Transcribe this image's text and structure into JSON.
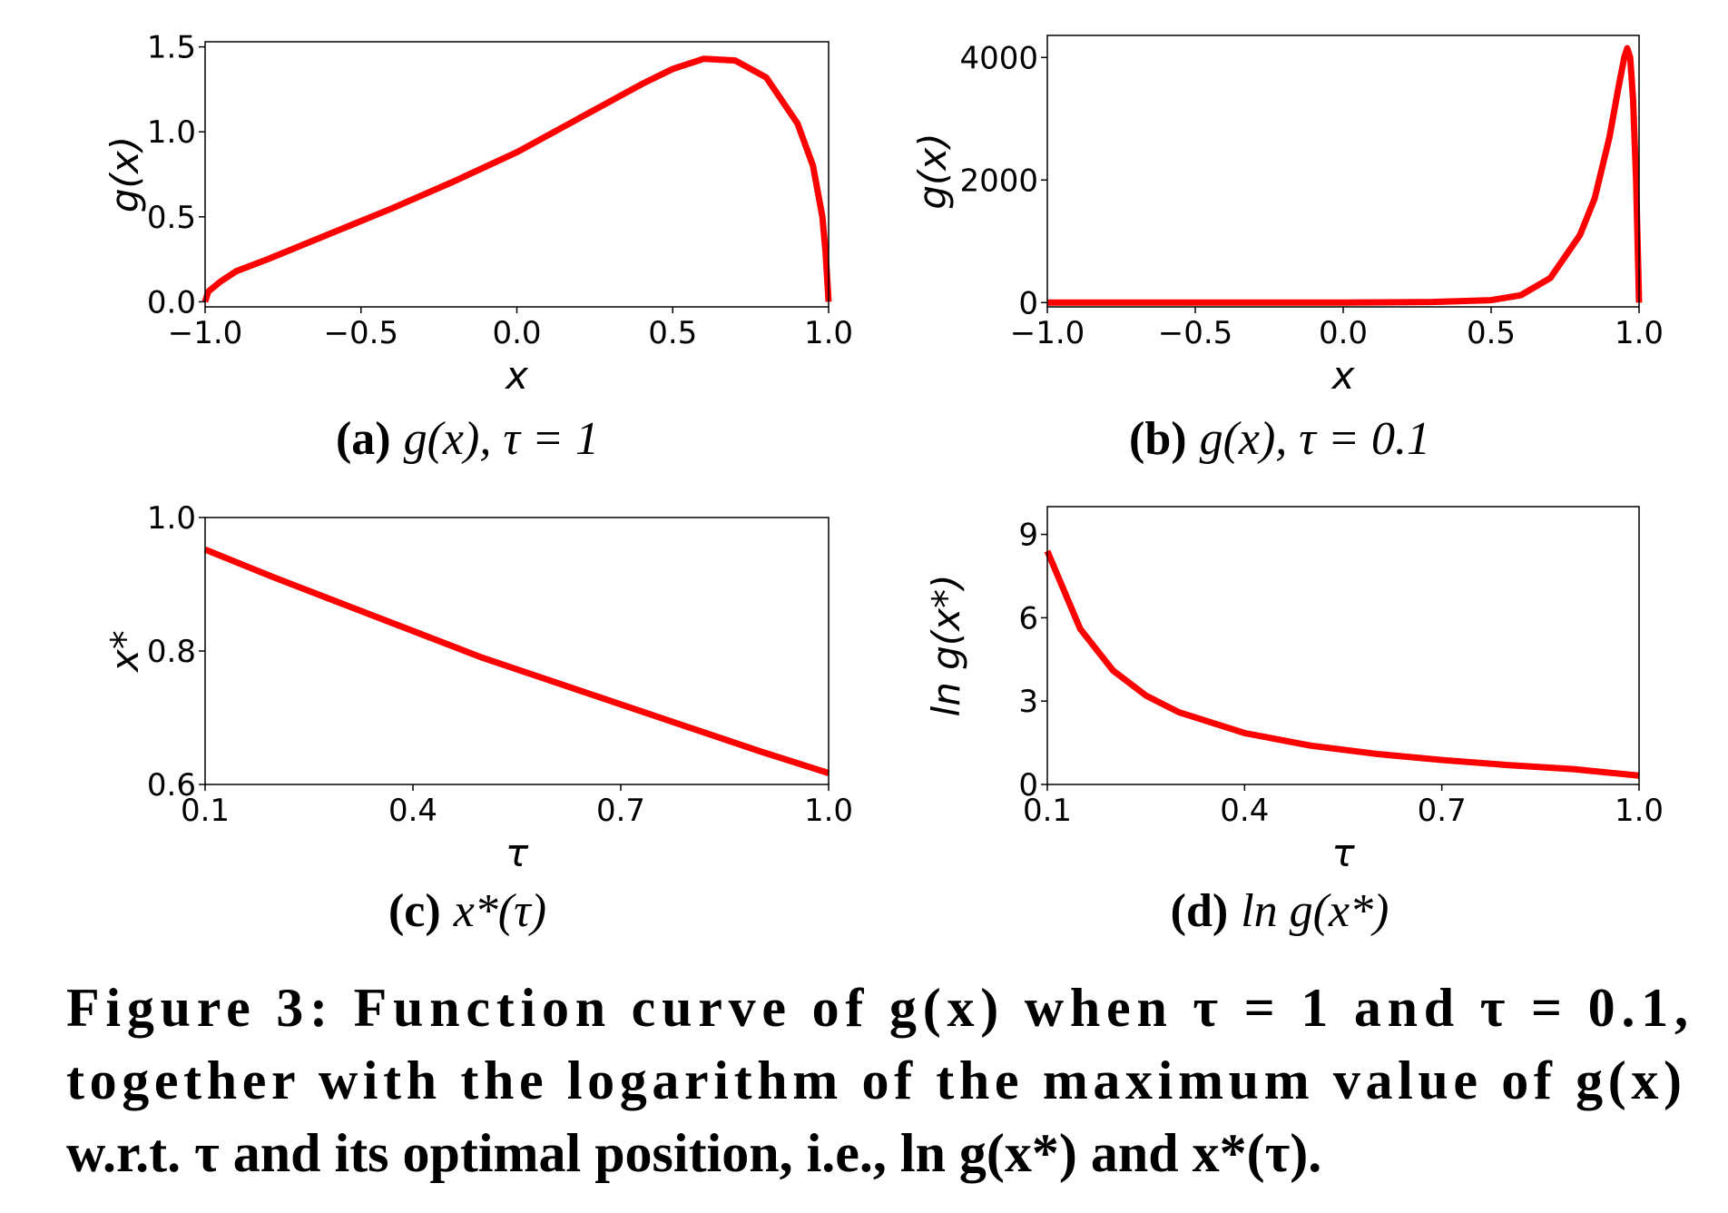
{
  "chart_data": [
    {
      "type": "line",
      "xlabel": "x",
      "ylabel": "g(x)",
      "x": [
        -1,
        -0.99,
        -0.95,
        -0.9,
        -0.8,
        -0.6,
        -0.4,
        -0.2,
        0,
        0.2,
        0.4,
        0.5,
        0.6,
        0.7,
        0.8,
        0.9,
        0.95,
        0.98,
        0.99,
        1
      ],
      "values": [
        0,
        0.06,
        0.12,
        0.18,
        0.25,
        0.4,
        0.55,
        0.71,
        0.88,
        1.08,
        1.28,
        1.37,
        1.43,
        1.42,
        1.32,
        1.05,
        0.8,
        0.5,
        0.3,
        0
      ],
      "color": "#ff0000",
      "xlim": [
        -1,
        1
      ],
      "ylim": [
        -0.03,
        1.53
      ],
      "xticks": [
        {
          "value": -1,
          "label": "−1.0"
        },
        {
          "value": -0.5,
          "label": "−0.5"
        },
        {
          "value": 0,
          "label": "0.0"
        },
        {
          "value": 0.5,
          "label": "0.5"
        },
        {
          "value": 1,
          "label": "1.0"
        }
      ],
      "yticks": [
        {
          "value": 0,
          "label": "0.0"
        },
        0.5,
        {
          "value": 1,
          "label": "1.0"
        },
        1.5
      ],
      "caption": {
        "label": "(a)",
        "formula": "g(x), τ = 1"
      }
    },
    {
      "type": "line",
      "xlabel": "x",
      "ylabel": "g(x)",
      "x": [
        -1,
        -0.5,
        0,
        0.3,
        0.5,
        0.6,
        0.7,
        0.8,
        0.85,
        0.9,
        0.93,
        0.95,
        0.96,
        0.97,
        0.98,
        0.99,
        1
      ],
      "values": [
        0,
        0,
        0,
        10,
        40,
        120,
        400,
        1100,
        1700,
        2700,
        3500,
        4000,
        4150,
        4000,
        3300,
        2000,
        0
      ],
      "color": "#ff0000",
      "xlim": [
        -1,
        1
      ],
      "ylim": [
        -70,
        4360
      ],
      "xticks": [
        {
          "value": -1,
          "label": "−1.0"
        },
        {
          "value": -0.5,
          "label": "−0.5"
        },
        {
          "value": 0,
          "label": "0.0"
        },
        {
          "value": 0.5,
          "label": "0.5"
        },
        {
          "value": 1,
          "label": "1.0"
        }
      ],
      "yticks": [
        0,
        2000,
        4000
      ],
      "caption": {
        "label": "(b)",
        "formula": "g(x), τ = 0.1"
      }
    },
    {
      "type": "line",
      "xlabel": "τ",
      "ylabel": "x*",
      "x": [
        0.1,
        0.2,
        0.3,
        0.4,
        0.5,
        0.6,
        0.7,
        0.8,
        0.9,
        1
      ],
      "values": [
        0.952,
        0.91,
        0.87,
        0.83,
        0.79,
        0.755,
        0.72,
        0.685,
        0.65,
        0.617
      ],
      "color": "#ff0000",
      "xlim": [
        0.1,
        1
      ],
      "ylim": [
        0.6,
        1
      ],
      "xticks": [
        0.1,
        0.4,
        0.7,
        {
          "value": 1,
          "label": "1.0"
        }
      ],
      "yticks": [
        0.6,
        0.8,
        {
          "value": 1,
          "label": "1.0"
        }
      ],
      "caption": {
        "label": "(c)",
        "formula": "x*(τ)"
      }
    },
    {
      "type": "line",
      "xlabel": "τ",
      "ylabel": "ln g(x*)",
      "x": [
        0.1,
        0.15,
        0.2,
        0.25,
        0.3,
        0.4,
        0.5,
        0.6,
        0.7,
        0.8,
        0.9,
        1
      ],
      "values": [
        8.4,
        5.6,
        4.1,
        3.2,
        2.6,
        1.85,
        1.4,
        1.1,
        0.88,
        0.7,
        0.55,
        0.32
      ],
      "color": "#ff0000",
      "xlim": [
        0.1,
        1
      ],
      "ylim": [
        0,
        10
      ],
      "xticks": [
        0.1,
        0.4,
        0.7,
        {
          "value": 1,
          "label": "1.0"
        }
      ],
      "yticks": [
        0,
        3,
        6,
        9
      ],
      "caption": {
        "label": "(d)",
        "formula": "ln g(x*)"
      }
    }
  ],
  "figure_caption": [
    "Figure 3: Function curve of g(x) when τ = 1 and τ = 0.1,",
    "together with the logarithm of the maximum value of g(x)",
    "w.r.t. τ and its optimal position, i.e., ln g(x*) and x*(τ)."
  ]
}
